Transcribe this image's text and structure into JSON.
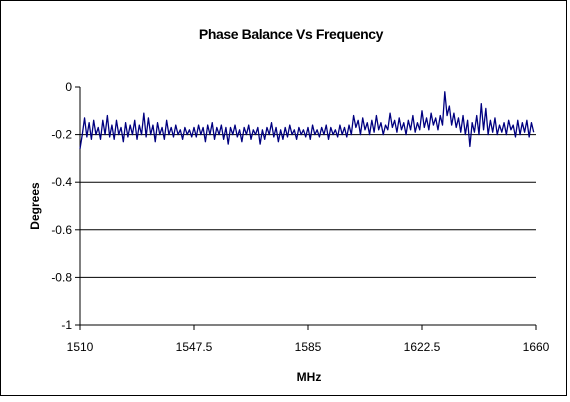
{
  "chart_data": {
    "type": "line",
    "title": "Phase Balance Vs Frequency",
    "xlabel": "MHz",
    "ylabel": "Degrees",
    "xlim": [
      1510,
      1660
    ],
    "ylim": [
      -1,
      0
    ],
    "x_ticks": [
      1510,
      1547.5,
      1585,
      1622.5,
      1660
    ],
    "x_tick_labels": [
      "1510",
      "1547.5",
      "1585",
      "1622.5",
      "1660"
    ],
    "y_ticks": [
      0,
      -0.2,
      -0.4,
      -0.6,
      -0.8,
      -1
    ],
    "y_tick_labels": [
      "0",
      "-0.2",
      "-0.4",
      "-0.6",
      "-0.8",
      "-1"
    ],
    "grid": "horizontal",
    "legend": "none",
    "series_color": "#000080",
    "series": [
      {
        "x_start": 1510,
        "x_step": 0.75,
        "values": [
          -0.26,
          -0.2,
          -0.13,
          -0.21,
          -0.15,
          -0.22,
          -0.14,
          -0.2,
          -0.17,
          -0.22,
          -0.14,
          -0.2,
          -0.12,
          -0.21,
          -0.16,
          -0.22,
          -0.14,
          -0.2,
          -0.17,
          -0.23,
          -0.15,
          -0.21,
          -0.16,
          -0.2,
          -0.14,
          -0.22,
          -0.16,
          -0.2,
          -0.11,
          -0.21,
          -0.13,
          -0.2,
          -0.16,
          -0.23,
          -0.15,
          -0.2,
          -0.17,
          -0.22,
          -0.14,
          -0.2,
          -0.17,
          -0.21,
          -0.16,
          -0.2,
          -0.18,
          -0.22,
          -0.17,
          -0.2,
          -0.18,
          -0.21,
          -0.17,
          -0.21,
          -0.16,
          -0.2,
          -0.17,
          -0.23,
          -0.16,
          -0.2,
          -0.15,
          -0.22,
          -0.17,
          -0.2,
          -0.16,
          -0.22,
          -0.17,
          -0.24,
          -0.17,
          -0.2,
          -0.16,
          -0.21,
          -0.18,
          -0.23,
          -0.17,
          -0.2,
          -0.16,
          -0.22,
          -0.18,
          -0.2,
          -0.17,
          -0.24,
          -0.18,
          -0.22,
          -0.17,
          -0.2,
          -0.15,
          -0.21,
          -0.17,
          -0.23,
          -0.18,
          -0.22,
          -0.17,
          -0.21,
          -0.16,
          -0.2,
          -0.18,
          -0.22,
          -0.17,
          -0.2,
          -0.18,
          -0.21,
          -0.17,
          -0.22,
          -0.16,
          -0.2,
          -0.18,
          -0.21,
          -0.17,
          -0.2,
          -0.16,
          -0.22,
          -0.17,
          -0.2,
          -0.18,
          -0.21,
          -0.16,
          -0.2,
          -0.17,
          -0.21,
          -0.16,
          -0.2,
          -0.12,
          -0.17,
          -0.14,
          -0.2,
          -0.13,
          -0.18,
          -0.15,
          -0.2,
          -0.14,
          -0.19,
          -0.12,
          -0.18,
          -0.15,
          -0.2,
          -0.16,
          -0.18,
          -0.11,
          -0.17,
          -0.14,
          -0.19,
          -0.13,
          -0.18,
          -0.15,
          -0.2,
          -0.14,
          -0.18,
          -0.12,
          -0.19,
          -0.15,
          -0.18,
          -0.1,
          -0.17,
          -0.13,
          -0.18,
          -0.11,
          -0.16,
          -0.13,
          -0.18,
          -0.12,
          -0.16,
          -0.02,
          -0.12,
          -0.08,
          -0.16,
          -0.11,
          -0.17,
          -0.13,
          -0.19,
          -0.12,
          -0.2,
          -0.14,
          -0.25,
          -0.15,
          -0.19,
          -0.12,
          -0.2,
          -0.07,
          -0.18,
          -0.09,
          -0.2,
          -0.14,
          -0.19,
          -0.13,
          -0.2,
          -0.16,
          -0.19,
          -0.15,
          -0.2,
          -0.14,
          -0.18,
          -0.16,
          -0.21,
          -0.14,
          -0.2,
          -0.15,
          -0.19,
          -0.14,
          -0.21,
          -0.15,
          -0.19
        ]
      }
    ]
  }
}
